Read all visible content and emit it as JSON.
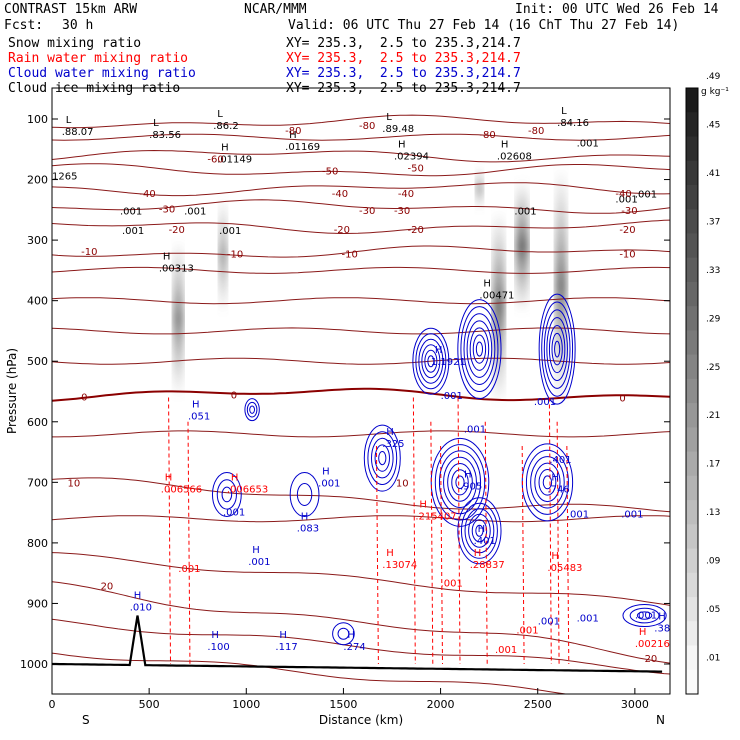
{
  "header": {
    "model": "CONTRAST 15km ARW",
    "center": "NCAR/MMM",
    "init": "Init: 00 UTC Wed 26 Feb 14",
    "fcst_label": "Fcst:",
    "fcst_value": "30 h",
    "valid": "Valid: 06 UTC Thu 27 Feb 14 (16 ChT Thu 27 Feb 14)"
  },
  "fields": [
    {
      "name": "Snow mixing ratio",
      "xy": "XY= 235.3,  2.5 to 235.3,214.7",
      "color": "#000000"
    },
    {
      "name": "Rain water mixing ratio",
      "xy": "XY= 235.3,  2.5 to 235.3,214.7",
      "color": "#ff0000"
    },
    {
      "name": "Cloud water mixing ratio",
      "xy": "XY= 235.3,  2.5 to 235.3,214.7",
      "color": "#0000cc"
    },
    {
      "name": "Cloud ice mixing ratio",
      "xy": "XY= 235.3,  2.5 to 235.3,214.7",
      "color": "#000000"
    }
  ],
  "chart_data": {
    "type": "heatmap",
    "xlabel": "Distance (km)",
    "ylabel": "Pressure (hPa)",
    "xlim": [
      0,
      3200
    ],
    "ylim": [
      1050,
      50
    ],
    "x_ticks": [
      0,
      500,
      1000,
      1500,
      2000,
      2500,
      3000
    ],
    "y_ticks": [
      100,
      200,
      300,
      400,
      500,
      600,
      700,
      800,
      900,
      1000
    ],
    "endpoints": {
      "left": "S",
      "right": "N"
    },
    "colorbar": {
      "unit": "g kg⁻¹",
      "labels": [
        ".01",
        ".05",
        ".09",
        ".13",
        ".17",
        ".21",
        ".25",
        ".29",
        ".33",
        ".37",
        ".41",
        ".45",
        ".49"
      ]
    },
    "isotherms": [
      {
        "label": "-80",
        "p": 105
      },
      {
        "label": "-60",
        "p": 160
      },
      {
        "label": "-50",
        "p": 185
      },
      {
        "label": "-40",
        "p": 215
      },
      {
        "label": "-30",
        "p": 245
      },
      {
        "label": "-20",
        "p": 278
      },
      {
        "label": "-10",
        "p": 320
      },
      {
        "label": "0",
        "p": 555
      },
      {
        "label": "10",
        "p": 700
      },
      {
        "label": "20",
        "p": 870
      }
    ],
    "isotherm_labels_text": [
      "-80",
      "-80",
      "-80",
      "-80",
      "-60",
      "-50",
      "-50",
      "-40",
      "-40",
      "-40",
      "-40",
      "-30",
      "-30",
      "-30",
      "-30",
      "-20",
      "-20",
      "-20",
      "-20",
      "-10",
      "-10",
      "-10",
      "-10",
      "0",
      "0",
      "0",
      "10",
      "10",
      "20",
      "20"
    ],
    "snow_shading": [
      {
        "x": 650,
        "p_top": 300,
        "p_bot": 560,
        "max": 0.35
      },
      {
        "x": 880,
        "p_top": 230,
        "p_bot": 420,
        "max": 0.2
      },
      {
        "x": 2300,
        "p_top": 250,
        "p_bot": 570,
        "max": 0.45
      },
      {
        "x": 2420,
        "p_top": 200,
        "p_bot": 420,
        "max": 0.49
      },
      {
        "x": 2620,
        "p_top": 180,
        "p_bot": 570,
        "max": 0.41
      },
      {
        "x": 2200,
        "p_top": 180,
        "p_bot": 250,
        "max": 0.15
      }
    ],
    "extrema_labels": [
      {
        "type": "L",
        "value": ".88.07",
        "x": 50,
        "p": 110,
        "color": "black"
      },
      {
        "type": "L",
        "value": ".83.56",
        "x": 500,
        "p": 115,
        "color": "black"
      },
      {
        "type": "L",
        "value": ".86.2",
        "x": 830,
        "p": 100,
        "color": "black"
      },
      {
        "type": "H",
        "value": ".01169",
        "x": 1200,
        "p": 135,
        "color": "black"
      },
      {
        "type": "L",
        "value": ".89.48",
        "x": 1700,
        "p": 105,
        "color": "black"
      },
      {
        "type": "L",
        "value": ".84.16",
        "x": 2600,
        "p": 95,
        "color": "black"
      },
      {
        "type": "H",
        "value": ".01149",
        "x": 850,
        "p": 155,
        "color": "black"
      },
      {
        "type": "H",
        "value": ".02394",
        "x": 1760,
        "p": 150,
        "color": "black"
      },
      {
        "type": "H",
        "value": ".02608",
        "x": 2290,
        "p": 150,
        "color": "black"
      },
      {
        "type": "H",
        "value": ".00313",
        "x": 550,
        "p": 335,
        "color": "black"
      },
      {
        "type": "H",
        "value": ".00471",
        "x": 2200,
        "p": 380,
        "color": "black"
      },
      {
        "type": "H",
        "value": ".051",
        "x": 700,
        "p": 580,
        "color": "blue"
      },
      {
        "type": "H",
        "value": "1.1921",
        "x": 1950,
        "p": 490,
        "color": "blue"
      },
      {
        "type": "H",
        "value": ".325",
        "x": 1700,
        "p": 625,
        "color": "blue"
      },
      {
        "type": "H",
        "value": ".905",
        "x": 2100,
        "p": 695,
        "color": "blue"
      },
      {
        "type": "H",
        "value": ".401",
        "x": 2170,
        "p": 785,
        "color": "blue"
      },
      {
        "type": "H",
        "value": ".746",
        "x": 2550,
        "p": 700,
        "color": "blue"
      },
      {
        "type": "H",
        "value": ".083",
        "x": 1260,
        "p": 765,
        "color": "blue"
      },
      {
        "type": "H",
        "value": ".001",
        "x": 1370,
        "p": 690,
        "color": "blue"
      },
      {
        "type": "H",
        "value": ".001",
        "x": 1010,
        "p": 820,
        "color": "blue"
      },
      {
        "type": "H",
        "value": ".010",
        "x": 400,
        "p": 895,
        "color": "blue"
      },
      {
        "type": "H",
        "value": ".100",
        "x": 800,
        "p": 960,
        "color": "blue"
      },
      {
        "type": "H",
        "value": ".117",
        "x": 1150,
        "p": 960,
        "color": "blue"
      },
      {
        "type": "H",
        "value": ".274",
        "x": 1500,
        "p": 960,
        "color": "blue"
      },
      {
        "type": "H",
        "value": ".38",
        "x": 3100,
        "p": 930,
        "color": "blue"
      },
      {
        "type": "H",
        "value": ".006566",
        "x": 560,
        "p": 700,
        "color": "red"
      },
      {
        "type": "H",
        "value": ".006653",
        "x": 900,
        "p": 700,
        "color": "red"
      },
      {
        "type": "H",
        "value": ".215407",
        "x": 1870,
        "p": 745,
        "color": "red"
      },
      {
        "type": "H",
        "value": ".13074",
        "x": 1700,
        "p": 825,
        "color": "red"
      },
      {
        "type": "H",
        "value": ".28837",
        "x": 2150,
        "p": 825,
        "color": "red"
      },
      {
        "type": "H",
        "value": ".05483",
        "x": 2550,
        "p": 830,
        "color": "red"
      },
      {
        "type": "H",
        "value": ".00216",
        "x": 3000,
        "p": 955,
        "color": "red"
      }
    ],
    "misc_labels": [
      {
        "value": "1265",
        "x": 0,
        "p": 200,
        "color": "black"
      },
      {
        "value": ".001",
        "x": 350,
        "p": 258,
        "color": "black"
      },
      {
        "value": ".001",
        "x": 360,
        "p": 290,
        "color": "black"
      },
      {
        "value": ".001",
        "x": 680,
        "p": 258,
        "color": "black"
      },
      {
        "value": ".001",
        "x": 860,
        "p": 290,
        "color": "black"
      },
      {
        "value": ".001",
        "x": 2380,
        "p": 258,
        "color": "black"
      },
      {
        "value": ".001",
        "x": 2700,
        "p": 145,
        "color": "black"
      },
      {
        "value": ".001",
        "x": 2900,
        "p": 238,
        "color": "black"
      },
      {
        "value": ".001",
        "x": 3000,
        "p": 230,
        "color": "black"
      },
      {
        "value": ".001",
        "x": 650,
        "p": 848,
        "color": "red"
      },
      {
        "value": ".001",
        "x": 2000,
        "p": 872,
        "color": "red"
      },
      {
        "value": ".001",
        "x": 2390,
        "p": 950,
        "color": "red"
      },
      {
        "value": ".001",
        "x": 2280,
        "p": 982,
        "color": "red"
      },
      {
        "value": ".001",
        "x": 2480,
        "p": 572,
        "color": "blue"
      },
      {
        "value": ".001",
        "x": 2650,
        "p": 758,
        "color": "blue"
      },
      {
        "value": ".001",
        "x": 2930,
        "p": 758,
        "color": "blue"
      },
      {
        "value": ".001",
        "x": 2500,
        "p": 935,
        "color": "blue"
      },
      {
        "value": ".001",
        "x": 2700,
        "p": 930,
        "color": "blue"
      },
      {
        "value": ".001",
        "x": 3000,
        "p": 925,
        "color": "blue"
      },
      {
        "value": ".001",
        "x": 2000,
        "p": 562,
        "color": "blue"
      },
      {
        "value": ".001",
        "x": 2120,
        "p": 618,
        "color": "blue"
      },
      {
        "value": ".401",
        "x": 2560,
        "p": 668,
        "color": "blue"
      },
      {
        "value": ".001",
        "x": 880,
        "p": 755,
        "color": "blue"
      }
    ]
  }
}
